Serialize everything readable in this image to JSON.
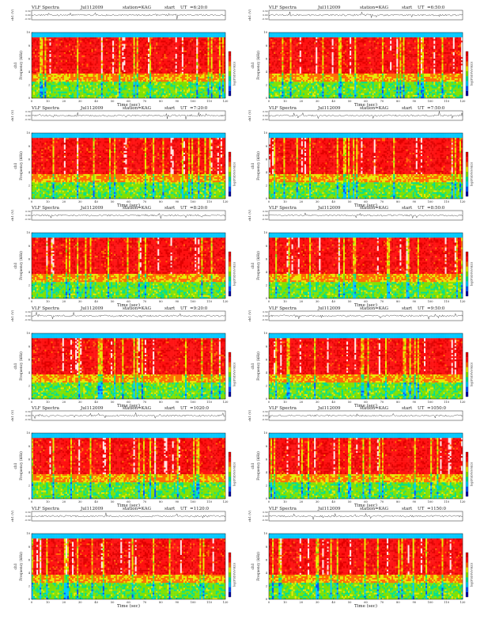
{
  "page": {
    "colors": {
      "axis": "#222222",
      "colormap": [
        "#0000a0",
        "#0050ff",
        "#00c8ff",
        "#00e08a",
        "#7ee000",
        "#e8e800",
        "#ff6a00",
        "#ff1010",
        "#e00000"
      ],
      "band_top": "#00c8c8"
    },
    "header_labels": {
      "title": "VLF Spectra",
      "station": "station=KAG",
      "start": "start",
      "ut": "UT"
    },
    "axis_labels": {
      "waveform_ylabel": "ch1 (V)",
      "spectrogram_ylabel": "Frequency (kHz)",
      "spectrogram_ylabel_channel": "ch1",
      "xlabel": "Time (sec)",
      "colorbar_label": "log(PSD(V/√Hz))"
    }
  },
  "chart_data": [
    {
      "type": "heatmap",
      "date": "Jul112009",
      "start_time": "=6:20:0",
      "x_ticks": [
        0,
        10,
        20,
        30,
        40,
        50,
        60,
        70,
        80,
        90,
        100,
        110,
        120
      ],
      "y_ticks": [
        0,
        2,
        4,
        6,
        8,
        10
      ],
      "wave_ticks": [
        "0.30",
        "0.00",
        "-0.30"
      ],
      "xlim": [
        0,
        120
      ],
      "ylim": [
        0,
        10
      ]
    },
    {
      "type": "heatmap",
      "date": "Jul112009",
      "start_time": "=6:50:0",
      "x_ticks": [
        0,
        10,
        20,
        30,
        40,
        50,
        60,
        70,
        80,
        90,
        100,
        110,
        120
      ],
      "y_ticks": [
        0,
        2,
        4,
        6,
        8,
        10
      ],
      "wave_ticks": [
        "0.30",
        "0.00",
        "-0.30"
      ],
      "xlim": [
        0,
        120
      ],
      "ylim": [
        0,
        10
      ]
    },
    {
      "type": "heatmap",
      "date": "Jul112009",
      "start_time": "=7:20:0",
      "x_ticks": [
        0,
        10,
        20,
        30,
        40,
        50,
        60,
        70,
        80,
        90,
        100,
        110,
        120
      ],
      "y_ticks": [
        0,
        2,
        4,
        6,
        8,
        10
      ],
      "wave_ticks": [
        "0.30",
        "0.00",
        "-0.30"
      ],
      "xlim": [
        0,
        120
      ],
      "ylim": [
        0,
        10
      ]
    },
    {
      "type": "heatmap",
      "date": "Jul112009",
      "start_time": "=7:50:0",
      "x_ticks": [
        0,
        10,
        20,
        30,
        40,
        50,
        60,
        70,
        80,
        90,
        100,
        110,
        120
      ],
      "y_ticks": [
        0,
        2,
        4,
        6,
        8,
        10
      ],
      "wave_ticks": [
        "0.30",
        "0.00",
        "-0.30"
      ],
      "xlim": [
        0,
        120
      ],
      "ylim": [
        0,
        10
      ]
    },
    {
      "type": "heatmap",
      "date": "Jul112009",
      "start_time": "=8:20:0",
      "x_ticks": [
        0,
        10,
        20,
        30,
        40,
        50,
        60,
        70,
        80,
        90,
        100,
        110,
        120
      ],
      "y_ticks": [
        0,
        2,
        4,
        6,
        8,
        10
      ],
      "wave_ticks": [
        "0.30",
        "0.00",
        "-0.30"
      ],
      "xlim": [
        0,
        120
      ],
      "ylim": [
        0,
        10
      ]
    },
    {
      "type": "heatmap",
      "date": "Jul112009",
      "start_time": "=8:50:0",
      "x_ticks": [
        0,
        10,
        20,
        30,
        40,
        50,
        60,
        70,
        80,
        90,
        100,
        110,
        120
      ],
      "y_ticks": [
        0,
        2,
        4,
        6,
        8,
        10
      ],
      "wave_ticks": [
        "0.30",
        "0.00",
        "-0.30"
      ],
      "xlim": [
        0,
        120
      ],
      "ylim": [
        0,
        10
      ]
    },
    {
      "type": "heatmap",
      "date": "Jul112009",
      "start_time": "=9:20:0",
      "x_ticks": [
        0,
        10,
        20,
        30,
        40,
        50,
        60,
        70,
        80,
        90,
        100,
        110,
        120
      ],
      "y_ticks": [
        0,
        2,
        4,
        6,
        8,
        10
      ],
      "wave_ticks": [
        "0.30",
        "0.00",
        "-0.30"
      ],
      "xlim": [
        0,
        120
      ],
      "ylim": [
        0,
        10
      ]
    },
    {
      "type": "heatmap",
      "date": "Jul112009",
      "start_time": "=9:50:0",
      "x_ticks": [
        0,
        10,
        20,
        30,
        40,
        50,
        60,
        70,
        80,
        90,
        100,
        110,
        120
      ],
      "y_ticks": [
        0,
        2,
        4,
        6,
        8,
        10
      ],
      "wave_ticks": [
        "0.30",
        "0.00",
        "-0.30"
      ],
      "xlim": [
        0,
        120
      ],
      "ylim": [
        0,
        10
      ]
    },
    {
      "type": "heatmap",
      "date": "Jul112009",
      "start_time": "=1020:0",
      "x_ticks": [
        0,
        10,
        20,
        30,
        40,
        50,
        60,
        70,
        80,
        90,
        100,
        110,
        120
      ],
      "y_ticks": [
        0,
        2,
        4,
        6,
        8,
        10
      ],
      "wave_ticks": [
        "0.30",
        "0.00",
        "-0.30"
      ],
      "xlim": [
        0,
        120
      ],
      "ylim": [
        0,
        10
      ]
    },
    {
      "type": "heatmap",
      "date": "Jul112009",
      "start_time": "=1050:0",
      "x_ticks": [
        0,
        10,
        20,
        30,
        40,
        50,
        60,
        70,
        80,
        90,
        100,
        110,
        120
      ],
      "y_ticks": [
        0,
        2,
        4,
        6,
        8,
        10
      ],
      "wave_ticks": [
        "0.30",
        "0.00",
        "-0.30"
      ],
      "xlim": [
        0,
        120
      ],
      "ylim": [
        0,
        10
      ]
    },
    {
      "type": "heatmap",
      "date": "Jul112009",
      "start_time": "=1120:0",
      "x_ticks": [
        0,
        10,
        20,
        30,
        40,
        50,
        60,
        70,
        80,
        90,
        100,
        110,
        120
      ],
      "y_ticks": [
        0,
        2,
        4,
        6,
        8,
        10
      ],
      "wave_ticks": [
        "0.30",
        "0.00",
        "-0.30"
      ],
      "xlim": [
        0,
        120
      ],
      "ylim": [
        0,
        10
      ]
    },
    {
      "type": "heatmap",
      "date": "Jul112009",
      "start_time": "=1150:0",
      "x_ticks": [
        0,
        10,
        20,
        30,
        40,
        50,
        60,
        70,
        80,
        90,
        100,
        110,
        120
      ],
      "y_ticks": [
        0,
        2,
        4,
        6,
        8,
        10
      ],
      "wave_ticks": [
        "0.30",
        "0.00",
        "-0.30"
      ],
      "xlim": [
        0,
        120
      ],
      "ylim": [
        0,
        10
      ]
    }
  ]
}
